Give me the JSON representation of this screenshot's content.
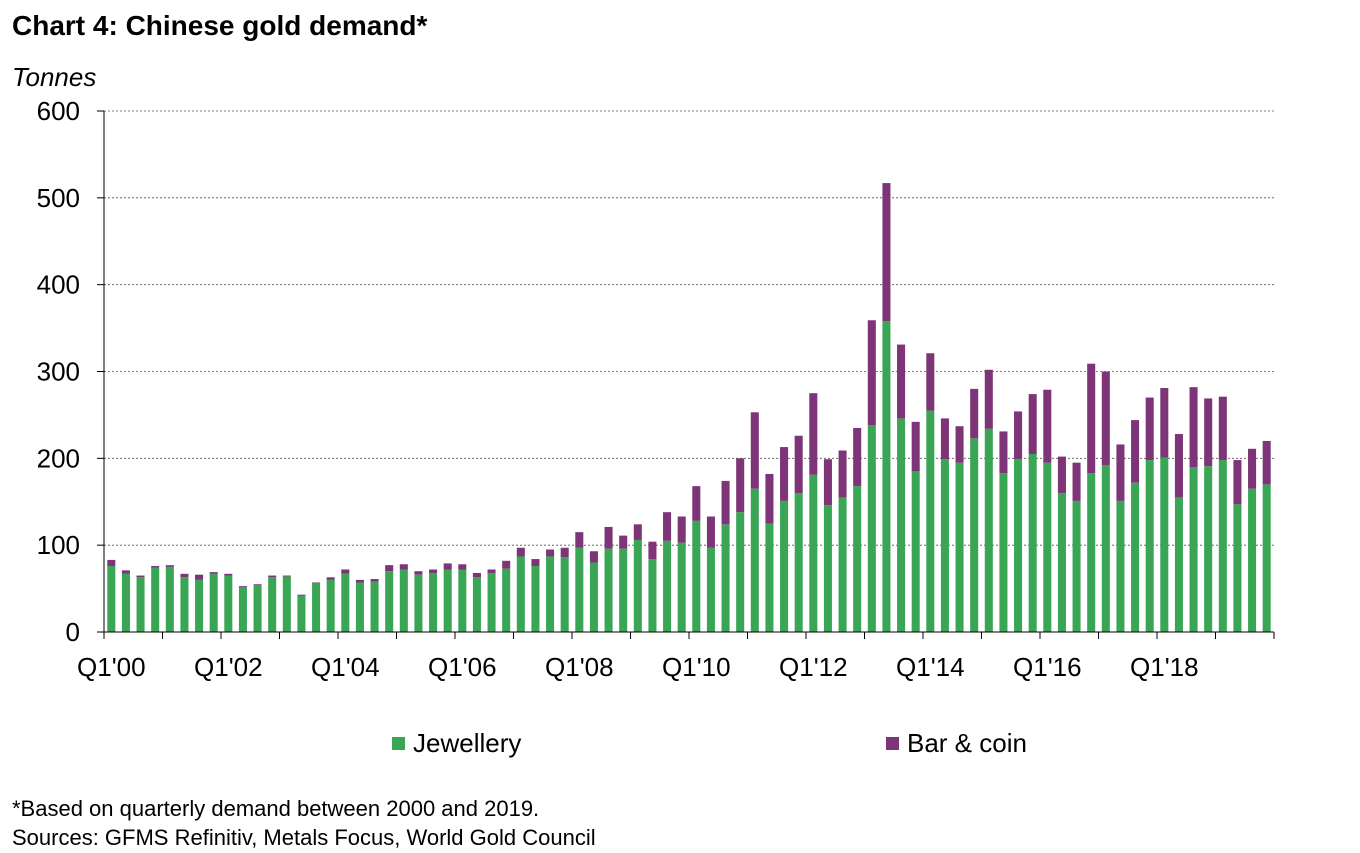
{
  "title": "Chart 4: Chinese gold demand*",
  "unit_label": "Tonnes",
  "footnote": "*Based on quarterly demand between 2000 and 2019.",
  "sources": "Sources: GFMS Refinitiv, Metals Focus, World Gold Council",
  "chart_data": {
    "type": "bar",
    "stacked": true,
    "title": "Chart 4: Chinese gold demand*",
    "ylabel": "Tonnes",
    "ylim": [
      0,
      600
    ],
    "yticks": [
      0,
      100,
      200,
      300,
      400,
      500,
      600
    ],
    "grid": true,
    "legend_position": "bottom",
    "x_tick_labels": [
      "Q1'00",
      "Q1'02",
      "Q1'04",
      "Q1'06",
      "Q1'08",
      "Q1'10",
      "Q1'12",
      "Q1'14",
      "Q1'16",
      "Q1'18"
    ],
    "categories": [
      "Q1'00",
      "Q2'00",
      "Q3'00",
      "Q4'00",
      "Q1'01",
      "Q2'01",
      "Q3'01",
      "Q4'01",
      "Q1'02",
      "Q2'02",
      "Q3'02",
      "Q4'02",
      "Q1'03",
      "Q2'03",
      "Q3'03",
      "Q4'03",
      "Q1'04",
      "Q2'04",
      "Q3'04",
      "Q4'04",
      "Q1'05",
      "Q2'05",
      "Q3'05",
      "Q4'05",
      "Q1'06",
      "Q2'06",
      "Q3'06",
      "Q4'06",
      "Q1'07",
      "Q2'07",
      "Q3'07",
      "Q4'07",
      "Q1'08",
      "Q2'08",
      "Q3'08",
      "Q4'08",
      "Q1'09",
      "Q2'09",
      "Q3'09",
      "Q4'09",
      "Q1'10",
      "Q2'10",
      "Q3'10",
      "Q4'10",
      "Q1'11",
      "Q2'11",
      "Q3'11",
      "Q4'11",
      "Q1'12",
      "Q2'12",
      "Q3'12",
      "Q4'12",
      "Q1'13",
      "Q2'13",
      "Q3'13",
      "Q4'13",
      "Q1'14",
      "Q2'14",
      "Q3'14",
      "Q4'14",
      "Q1'15",
      "Q2'15",
      "Q3'15",
      "Q4'15",
      "Q1'16",
      "Q2'16",
      "Q3'16",
      "Q4'16",
      "Q1'17",
      "Q2'17",
      "Q3'17",
      "Q4'17",
      "Q1'18",
      "Q2'18",
      "Q3'18",
      "Q4'18",
      "Q1'19",
      "Q2'19",
      "Q3'19",
      "Q4'19"
    ],
    "series": [
      {
        "name": "Jewellery",
        "color": "#3aa655",
        "values": [
          76,
          67,
          63,
          74,
          75,
          63,
          60,
          67,
          65,
          52,
          54,
          63,
          64,
          42,
          56,
          60,
          67,
          57,
          58,
          70,
          72,
          66,
          68,
          72,
          72,
          63,
          68,
          73,
          87,
          76,
          87,
          86,
          97,
          80,
          96,
          96,
          106,
          84,
          105,
          103,
          128,
          97,
          124,
          138,
          165,
          125,
          151,
          160,
          181,
          146,
          155,
          168,
          238,
          358,
          246,
          185,
          255,
          199,
          195,
          223,
          234,
          183,
          199,
          205,
          195,
          160,
          151,
          183,
          192,
          151,
          172,
          198,
          201,
          155,
          190,
          191,
          198,
          147,
          165,
          170
        ]
      },
      {
        "name": "Bar & coin",
        "color": "#7d3577",
        "values": [
          7,
          4,
          2,
          2,
          2,
          4,
          6,
          2,
          2,
          1,
          1,
          2,
          1,
          1,
          1,
          3,
          5,
          3,
          3,
          7,
          6,
          4,
          4,
          7,
          6,
          5,
          4,
          9,
          10,
          8,
          8,
          11,
          18,
          13,
          25,
          15,
          18,
          20,
          33,
          30,
          40,
          36,
          50,
          62,
          88,
          57,
          62,
          66,
          94,
          53,
          54,
          67,
          121,
          159,
          85,
          57,
          66,
          47,
          42,
          57,
          68,
          48,
          55,
          69,
          84,
          42,
          44,
          126,
          108,
          65,
          72,
          72,
          80,
          73,
          92,
          78,
          73,
          51,
          46,
          50
        ]
      }
    ]
  }
}
